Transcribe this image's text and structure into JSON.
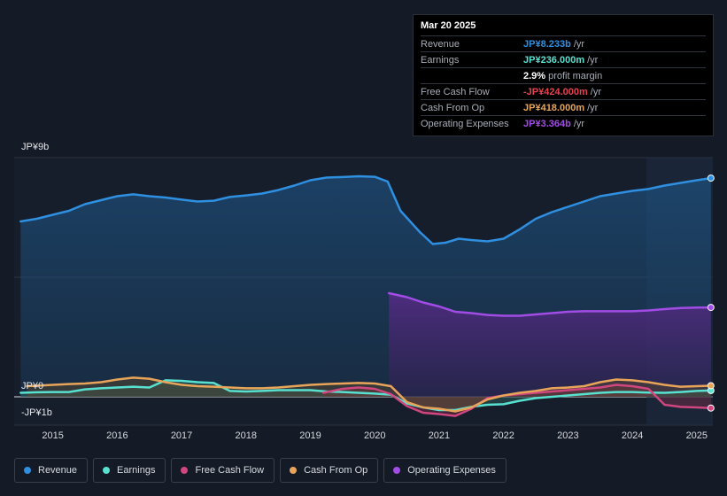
{
  "tooltip": {
    "date": "Mar 20 2025",
    "rows": [
      {
        "label": "Revenue",
        "value": "JP¥8.233b",
        "unit": "/yr",
        "color": "#2f8fe0"
      },
      {
        "label": "Earnings",
        "value": "JP¥236.000m",
        "unit": "/yr",
        "color": "#58e1d0"
      },
      {
        "label": "",
        "value": "2.9%",
        "unit": "profit margin",
        "color": "#ffffff"
      },
      {
        "label": "Free Cash Flow",
        "value": "-JP¥424.000m",
        "unit": "/yr",
        "color": "#e5434f"
      },
      {
        "label": "Cash From Op",
        "value": "JP¥418.000m",
        "unit": "/yr",
        "color": "#e8a55a"
      },
      {
        "label": "Operating Expenses",
        "value": "JP¥3.364b",
        "unit": "/yr",
        "color": "#a24ce6"
      }
    ]
  },
  "legend": [
    {
      "label": "Revenue",
      "color": "#2f8fe0"
    },
    {
      "label": "Earnings",
      "color": "#58e1d0"
    },
    {
      "label": "Free Cash Flow",
      "color": "#d0467f"
    },
    {
      "label": "Cash From Op",
      "color": "#e8a55a"
    },
    {
      "label": "Operating Expenses",
      "color": "#a24ce6"
    }
  ],
  "chart_data": {
    "type": "area",
    "x_unit": "year",
    "xlim": [
      2014.4,
      2025.25
    ],
    "ylim": [
      -1,
      9
    ],
    "y_tick_labels": [
      {
        "label": "JP¥9b",
        "value": 9
      },
      {
        "label": "JP¥0",
        "value": 0
      },
      {
        "label": "-JP¥1b",
        "value": -1
      }
    ],
    "x_ticks": [
      2015,
      2016,
      2017,
      2018,
      2019,
      2020,
      2021,
      2022,
      2023,
      2024,
      2025
    ],
    "highlight_from": 2024.22,
    "series": [
      {
        "name": "Revenue",
        "color": "#2f8fe0",
        "fill": true,
        "points": [
          [
            2014.5,
            6.6
          ],
          [
            2014.75,
            6.7
          ],
          [
            2015.0,
            6.85
          ],
          [
            2015.25,
            7.0
          ],
          [
            2015.5,
            7.25
          ],
          [
            2015.75,
            7.4
          ],
          [
            2016.0,
            7.55
          ],
          [
            2016.25,
            7.62
          ],
          [
            2016.5,
            7.55
          ],
          [
            2016.75,
            7.5
          ],
          [
            2017.0,
            7.42
          ],
          [
            2017.25,
            7.35
          ],
          [
            2017.5,
            7.38
          ],
          [
            2017.75,
            7.52
          ],
          [
            2018.0,
            7.58
          ],
          [
            2018.25,
            7.65
          ],
          [
            2018.5,
            7.78
          ],
          [
            2018.75,
            7.95
          ],
          [
            2019.0,
            8.15
          ],
          [
            2019.25,
            8.25
          ],
          [
            2019.5,
            8.27
          ],
          [
            2019.75,
            8.3
          ],
          [
            2020.0,
            8.28
          ],
          [
            2020.2,
            8.1
          ],
          [
            2020.4,
            7.0
          ],
          [
            2020.7,
            6.2
          ],
          [
            2020.9,
            5.75
          ],
          [
            2021.1,
            5.8
          ],
          [
            2021.3,
            5.95
          ],
          [
            2021.5,
            5.9
          ],
          [
            2021.75,
            5.85
          ],
          [
            2022.0,
            5.95
          ],
          [
            2022.25,
            6.3
          ],
          [
            2022.5,
            6.7
          ],
          [
            2022.75,
            6.95
          ],
          [
            2023.0,
            7.15
          ],
          [
            2023.25,
            7.35
          ],
          [
            2023.5,
            7.55
          ],
          [
            2023.75,
            7.65
          ],
          [
            2024.0,
            7.75
          ],
          [
            2024.25,
            7.82
          ],
          [
            2024.5,
            7.95
          ],
          [
            2024.75,
            8.05
          ],
          [
            2025.0,
            8.15
          ],
          [
            2025.22,
            8.23
          ]
        ]
      },
      {
        "name": "Operating Expenses",
        "color": "#a24ce6",
        "fill": true,
        "points": [
          [
            2020.22,
            3.9
          ],
          [
            2020.5,
            3.75
          ],
          [
            2020.75,
            3.55
          ],
          [
            2021.0,
            3.4
          ],
          [
            2021.25,
            3.2
          ],
          [
            2021.5,
            3.15
          ],
          [
            2021.75,
            3.08
          ],
          [
            2022.0,
            3.05
          ],
          [
            2022.25,
            3.05
          ],
          [
            2022.5,
            3.1
          ],
          [
            2022.75,
            3.15
          ],
          [
            2023.0,
            3.2
          ],
          [
            2023.25,
            3.22
          ],
          [
            2023.5,
            3.22
          ],
          [
            2023.75,
            3.22
          ],
          [
            2024.0,
            3.22
          ],
          [
            2024.25,
            3.25
          ],
          [
            2024.5,
            3.3
          ],
          [
            2024.75,
            3.34
          ],
          [
            2025.0,
            3.36
          ],
          [
            2025.22,
            3.364
          ]
        ]
      },
      {
        "name": "Earnings",
        "color": "#58e1d0",
        "fill": true,
        "points": [
          [
            2014.5,
            0.15
          ],
          [
            2014.75,
            0.17
          ],
          [
            2015.0,
            0.18
          ],
          [
            2015.25,
            0.18
          ],
          [
            2015.5,
            0.28
          ],
          [
            2015.75,
            0.32
          ],
          [
            2016.0,
            0.35
          ],
          [
            2016.25,
            0.38
          ],
          [
            2016.5,
            0.35
          ],
          [
            2016.75,
            0.62
          ],
          [
            2017.0,
            0.6
          ],
          [
            2017.25,
            0.55
          ],
          [
            2017.5,
            0.52
          ],
          [
            2017.75,
            0.22
          ],
          [
            2018.0,
            0.2
          ],
          [
            2018.25,
            0.22
          ],
          [
            2018.5,
            0.25
          ],
          [
            2018.75,
            0.25
          ],
          [
            2019.0,
            0.25
          ],
          [
            2019.25,
            0.2
          ],
          [
            2019.5,
            0.18
          ],
          [
            2019.75,
            0.15
          ],
          [
            2020.0,
            0.12
          ],
          [
            2020.25,
            0.08
          ],
          [
            2020.5,
            -0.25
          ],
          [
            2020.75,
            -0.4
          ],
          [
            2021.0,
            -0.5
          ],
          [
            2021.25,
            -0.5
          ],
          [
            2021.5,
            -0.38
          ],
          [
            2021.75,
            -0.3
          ],
          [
            2022.0,
            -0.28
          ],
          [
            2022.25,
            -0.15
          ],
          [
            2022.5,
            -0.05
          ],
          [
            2022.75,
            0.0
          ],
          [
            2023.0,
            0.05
          ],
          [
            2023.25,
            0.1
          ],
          [
            2023.5,
            0.15
          ],
          [
            2023.75,
            0.18
          ],
          [
            2024.0,
            0.18
          ],
          [
            2024.25,
            0.16
          ],
          [
            2024.5,
            0.15
          ],
          [
            2024.75,
            0.18
          ],
          [
            2025.0,
            0.22
          ],
          [
            2025.22,
            0.236
          ]
        ]
      },
      {
        "name": "Free Cash Flow",
        "color": "#d0467f",
        "fill": true,
        "points": [
          [
            2019.2,
            0.15
          ],
          [
            2019.5,
            0.3
          ],
          [
            2019.75,
            0.35
          ],
          [
            2020.0,
            0.3
          ],
          [
            2020.25,
            0.1
          ],
          [
            2020.5,
            -0.35
          ],
          [
            2020.75,
            -0.6
          ],
          [
            2021.0,
            -0.65
          ],
          [
            2021.25,
            -0.72
          ],
          [
            2021.5,
            -0.45
          ],
          [
            2021.75,
            -0.05
          ],
          [
            2022.0,
            0.05
          ],
          [
            2022.25,
            0.1
          ],
          [
            2022.5,
            0.15
          ],
          [
            2022.75,
            0.2
          ],
          [
            2023.0,
            0.25
          ],
          [
            2023.25,
            0.3
          ],
          [
            2023.5,
            0.35
          ],
          [
            2023.75,
            0.45
          ],
          [
            2024.0,
            0.4
          ],
          [
            2024.25,
            0.3
          ],
          [
            2024.5,
            -0.3
          ],
          [
            2024.75,
            -0.38
          ],
          [
            2025.0,
            -0.4
          ],
          [
            2025.22,
            -0.424
          ]
        ]
      },
      {
        "name": "Cash From Op",
        "color": "#e8a55a",
        "fill": true,
        "points": [
          [
            2014.6,
            0.4
          ],
          [
            2015.0,
            0.45
          ],
          [
            2015.25,
            0.48
          ],
          [
            2015.5,
            0.5
          ],
          [
            2015.75,
            0.55
          ],
          [
            2016.0,
            0.65
          ],
          [
            2016.25,
            0.72
          ],
          [
            2016.5,
            0.68
          ],
          [
            2016.75,
            0.55
          ],
          [
            2017.0,
            0.45
          ],
          [
            2017.25,
            0.4
          ],
          [
            2017.5,
            0.38
          ],
          [
            2017.75,
            0.35
          ],
          [
            2018.0,
            0.32
          ],
          [
            2018.25,
            0.32
          ],
          [
            2018.5,
            0.35
          ],
          [
            2018.75,
            0.4
          ],
          [
            2019.0,
            0.45
          ],
          [
            2019.25,
            0.48
          ],
          [
            2019.5,
            0.5
          ],
          [
            2019.75,
            0.52
          ],
          [
            2020.0,
            0.5
          ],
          [
            2020.25,
            0.4
          ],
          [
            2020.5,
            -0.2
          ],
          [
            2020.75,
            -0.4
          ],
          [
            2021.0,
            -0.45
          ],
          [
            2021.25,
            -0.55
          ],
          [
            2021.5,
            -0.4
          ],
          [
            2021.75,
            -0.1
          ],
          [
            2022.0,
            0.05
          ],
          [
            2022.25,
            0.15
          ],
          [
            2022.5,
            0.22
          ],
          [
            2022.75,
            0.32
          ],
          [
            2023.0,
            0.35
          ],
          [
            2023.25,
            0.4
          ],
          [
            2023.5,
            0.55
          ],
          [
            2023.75,
            0.65
          ],
          [
            2024.0,
            0.62
          ],
          [
            2024.25,
            0.55
          ],
          [
            2024.5,
            0.45
          ],
          [
            2024.75,
            0.38
          ],
          [
            2025.0,
            0.4
          ],
          [
            2025.22,
            0.418
          ]
        ]
      }
    ]
  }
}
